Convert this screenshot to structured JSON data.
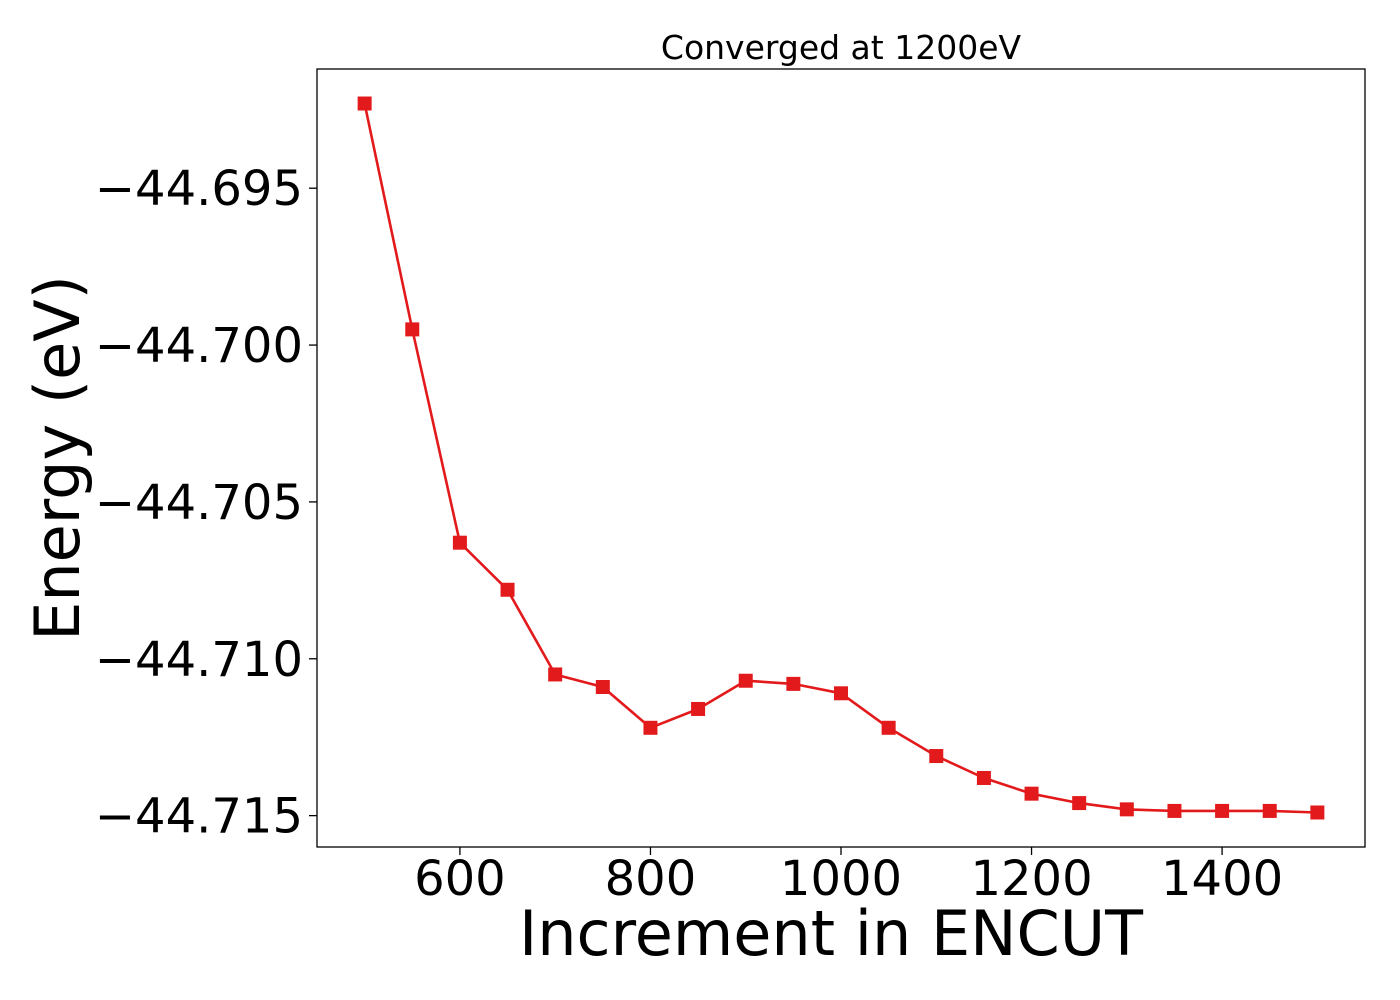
{
  "chart_data": {
    "type": "line",
    "title": "Converged at 1200eV",
    "xlabel": "Increment in ENCUT",
    "ylabel": "Energy (eV)",
    "xlim": [
      450,
      1550
    ],
    "ylim": [
      -44.716,
      -44.6912
    ],
    "xticks": [
      600,
      800,
      1000,
      1200,
      1400
    ],
    "xtick_labels": [
      "600",
      "800",
      "1000",
      "1200",
      "1400"
    ],
    "yticks": [
      -44.695,
      -44.7,
      -44.705,
      -44.71,
      -44.715
    ],
    "ytick_labels": [
      "−44.695",
      "−44.700",
      "−44.705",
      "−44.710",
      "−44.715"
    ],
    "grid": false,
    "series": [
      {
        "color": "#e31a1c",
        "marker": "square",
        "x": [
          500,
          550,
          600,
          650,
          700,
          750,
          800,
          850,
          900,
          950,
          1000,
          1050,
          1100,
          1150,
          1200,
          1250,
          1300,
          1350,
          1400,
          1450,
          1500
        ],
        "y": [
          -44.6923,
          -44.6995,
          -44.7063,
          -44.7078,
          -44.7105,
          -44.7109,
          -44.7122,
          -44.7116,
          -44.7107,
          -44.7108,
          -44.7111,
          -44.7122,
          -44.7131,
          -44.7138,
          -44.7143,
          -44.7146,
          -44.7148,
          -44.71485,
          -44.71485,
          -44.71485,
          -44.7149
        ]
      }
    ]
  }
}
